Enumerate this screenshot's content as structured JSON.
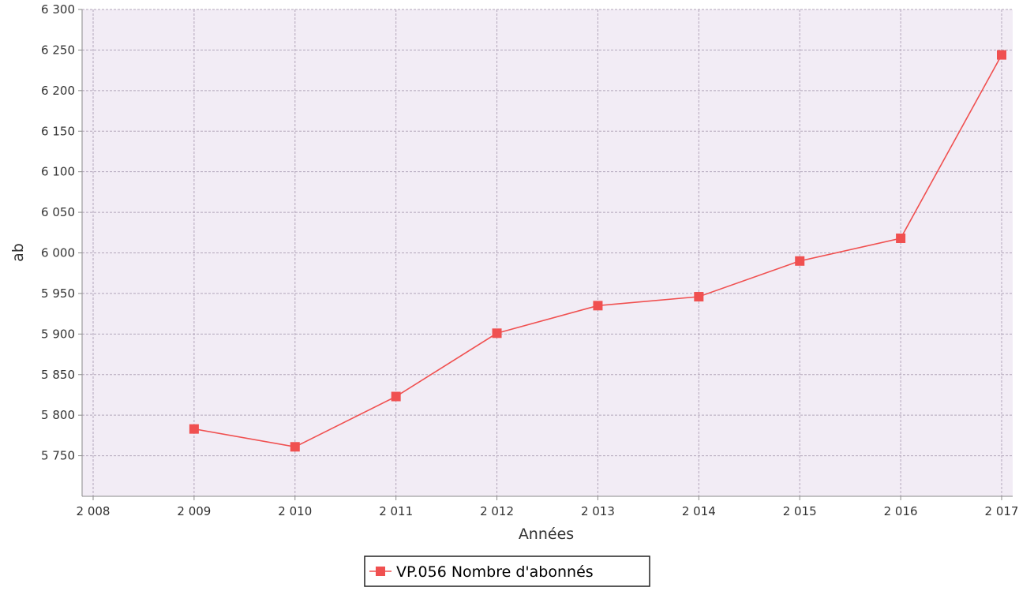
{
  "chart_data": {
    "type": "line",
    "xlabel": "Années",
    "ylabel": "ab",
    "xlim": [
      2008,
      2017
    ],
    "ylim": [
      5700,
      6300
    ],
    "grid": true,
    "legend_placement": "bottom-center",
    "x_ticks": [
      2008,
      2009,
      2010,
      2011,
      2012,
      2013,
      2014,
      2015,
      2016,
      2017
    ],
    "x_tick_labels": [
      "2 008",
      "2 009",
      "2 010",
      "2 011",
      "2 012",
      "2 013",
      "2 014",
      "2 015",
      "2 016",
      "2 017"
    ],
    "y_ticks": [
      5750,
      5800,
      5850,
      5900,
      5950,
      6000,
      6050,
      6100,
      6150,
      6200,
      6250,
      6300
    ],
    "y_tick_labels": [
      "5 750",
      "5 800",
      "5 850",
      "5 900",
      "5 950",
      "6 000",
      "6 050",
      "6 100",
      "6 150",
      "6 200",
      "6 250",
      "6 300"
    ],
    "series": [
      {
        "name": "VP.056 Nombre d'abonnés",
        "color": "#f05050",
        "marker": "square",
        "x": [
          2009,
          2010,
          2011,
          2012,
          2013,
          2014,
          2015,
          2016,
          2017
        ],
        "values": [
          5783,
          5761,
          5823,
          5901,
          5935,
          5946,
          5990,
          6018,
          6244
        ]
      }
    ],
    "colors": {
      "plot_background": "#f2ecf5",
      "grid": "#b3a6ba",
      "axis": "#8a8a8a"
    }
  }
}
